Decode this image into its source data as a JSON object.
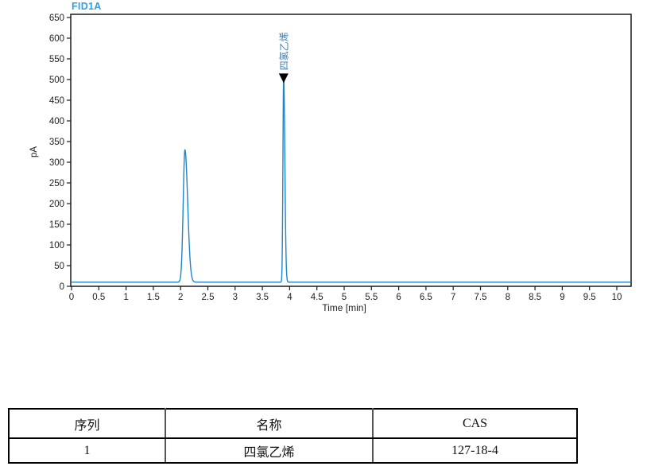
{
  "chart": {
    "signal_label": "FID1A",
    "colors": {
      "curve": "#1d86c8",
      "signal_label": "#2ba1e3",
      "axis": "#1a1a1a",
      "tick_text": "#222222",
      "peak_label": "#3c7fb2",
      "marker": "#000000"
    }
  },
  "chart_data": {
    "type": "line",
    "title": "FID1A",
    "xlabel": "Time [min]",
    "ylabel": "pA",
    "xlim": [
      0,
      10.26
    ],
    "ylim": [
      0,
      650
    ],
    "grid": false,
    "x_ticks": [
      0,
      0.5,
      1,
      1.5,
      2,
      2.5,
      3,
      3.5,
      4,
      4.5,
      5,
      5.5,
      6,
      6.5,
      7,
      7.5,
      8,
      8.5,
      9,
      9.5,
      10
    ],
    "y_ticks": [
      0,
      50,
      100,
      150,
      200,
      250,
      300,
      350,
      400,
      450,
      500,
      550,
      600,
      650
    ],
    "baseline_pA": 10,
    "peaks": [
      {
        "time_min": 2.08,
        "height_pA": 320,
        "width_left_min": 0.032,
        "width_right_min": 0.05,
        "label": ""
      },
      {
        "time_min": 3.89,
        "height_pA": 497,
        "width_left_min": 0.013,
        "width_right_min": 0.022,
        "label": "四氯乙烯",
        "marker": "triangle-down"
      }
    ]
  },
  "table": {
    "headers": {
      "seq": "序列",
      "name": "名称",
      "cas": "CAS"
    },
    "row": {
      "seq": "1",
      "name": "四氯乙烯",
      "cas": "127-18-4"
    }
  }
}
